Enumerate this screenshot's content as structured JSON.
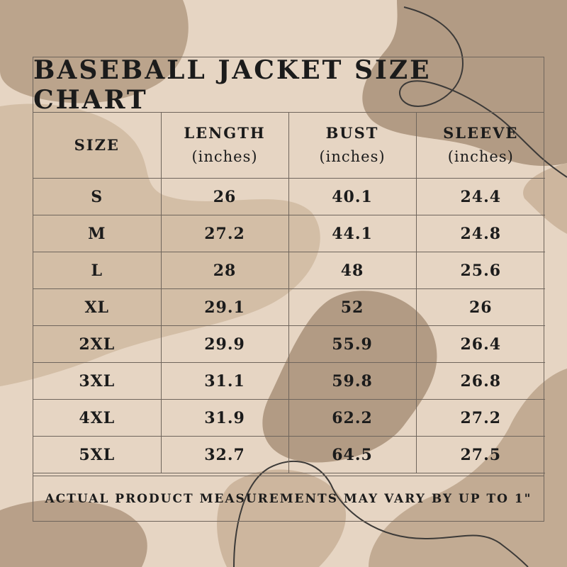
{
  "title": "BASEBALL JACKET SIZE CHART",
  "headers": [
    {
      "label": "SIZE",
      "unit": ""
    },
    {
      "label": "LENGTH",
      "unit": "(inches)"
    },
    {
      "label": "BUST",
      "unit": "(inches)"
    },
    {
      "label": "SLEEVE",
      "unit": "(inches)"
    }
  ],
  "rows": [
    [
      "S",
      "26",
      "40.1",
      "24.4"
    ],
    [
      "M",
      "27.2",
      "44.1",
      "24.8"
    ],
    [
      "L",
      "28",
      "48",
      "25.6"
    ],
    [
      "XL",
      "29.1",
      "52",
      "26"
    ],
    [
      "2XL",
      "29.9",
      "55.9",
      "26.4"
    ],
    [
      "3XL",
      "31.1",
      "59.8",
      "26.8"
    ],
    [
      "4XL",
      "31.9",
      "62.2",
      "27.2"
    ],
    [
      "5XL",
      "32.7",
      "64.5",
      "27.5"
    ]
  ],
  "note": "ACTUAL PRODUCT MEASUREMENTS MAY VARY BY UP TO 1\"",
  "colors": {
    "background": "#e6d5c3",
    "blob_light": "#d5bfa7",
    "blob_dark": "#b29b84",
    "ink": "#1b1b1b",
    "line": "#6f655c"
  }
}
